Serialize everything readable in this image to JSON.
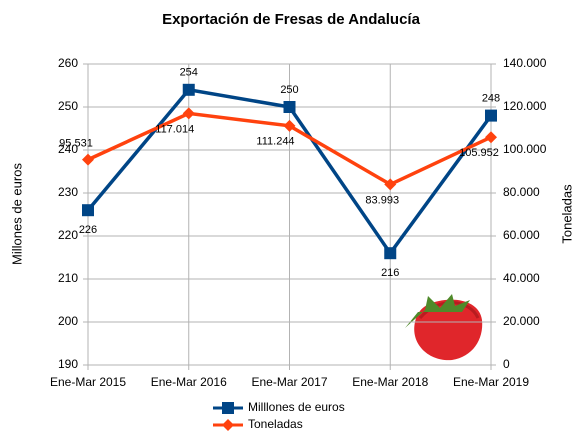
{
  "chart_data": {
    "type": "line",
    "title": "Exportación de Fresas de Andalucía",
    "y_label": "Millones de euros",
    "y2_label": "Toneladas",
    "categories": [
      "Ene-Mar 2015",
      "Ene-Mar 2016",
      "Ene-Mar 2017",
      "Ene-Mar 2018",
      "Ene-Mar 2019"
    ],
    "series": [
      {
        "name": "Milllones de euros",
        "color": "#004586",
        "marker": "square",
        "values": [
          226,
          254,
          250,
          216,
          248
        ]
      },
      {
        "name": "Toneladas",
        "color": "#ff420e",
        "marker": "diamond",
        "axis": "y2",
        "values": [
          95531,
          117014,
          111244,
          83993,
          105952
        ],
        "value_labels": [
          "95.531",
          "117.014",
          "111.244",
          "83.993",
          "105.952"
        ]
      }
    ],
    "ylim": [
      190,
      260
    ],
    "yticks": [
      190,
      200,
      210,
      220,
      230,
      240,
      250,
      260
    ],
    "y2lim": [
      0,
      140000
    ],
    "y2ticks": [
      0,
      {
        "value": 20000,
        "label": "20.000"
      },
      {
        "value": 40000,
        "label": "40.000"
      },
      {
        "value": 60000,
        "label": "60.000"
      },
      {
        "value": 80000,
        "label": "80.000"
      },
      {
        "value": 100000,
        "label": "100.000"
      },
      {
        "value": 120000,
        "label": "120.000"
      },
      {
        "value": 140000,
        "label": "140.000"
      }
    ],
    "grid": true,
    "legend": "bottom"
  }
}
